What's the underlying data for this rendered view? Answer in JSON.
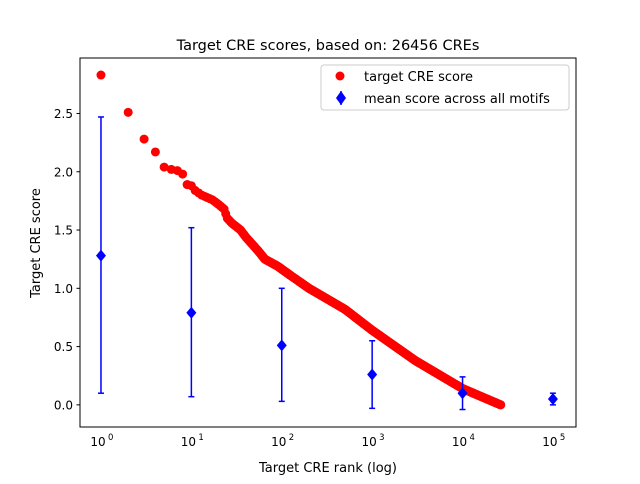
{
  "chart_data": {
    "type": "scatter",
    "title": "Target CRE scores, based on: 26456 CREs",
    "xlabel": "Target CRE rank (log)",
    "ylabel": "Target CRE score",
    "xscale": "log",
    "xlim": [
      0.586,
      180000
    ],
    "ylim": [
      -0.19,
      2.976
    ],
    "xticks": [
      {
        "value": 1,
        "base": "10",
        "exp": "0"
      },
      {
        "value": 10,
        "base": "10",
        "exp": "1"
      },
      {
        "value": 100,
        "base": "10",
        "exp": "2"
      },
      {
        "value": 1000,
        "base": "10",
        "exp": "3"
      },
      {
        "value": 10000,
        "base": "10",
        "exp": "4"
      },
      {
        "value": 100000,
        "base": "10",
        "exp": "5"
      }
    ],
    "yticks": [
      {
        "value": 0,
        "label": "0.0"
      },
      {
        "value": 0.5,
        "label": "0.5"
      },
      {
        "value": 1.0,
        "label": "1.0"
      },
      {
        "value": 1.5,
        "label": "1.5"
      },
      {
        "value": 2.0,
        "label": "2.0"
      },
      {
        "value": 2.5,
        "label": "2.5"
      }
    ],
    "legend": {
      "placement": "top-right",
      "entries": [
        "target CRE score",
        "mean score across all motifs"
      ]
    },
    "grid": false,
    "series": [
      {
        "name": "target CRE score",
        "kind": "scatter",
        "color": "#ff0000",
        "points": [
          [
            1,
            2.83
          ],
          [
            2,
            2.51
          ],
          [
            3,
            2.28
          ],
          [
            4,
            2.17
          ],
          [
            5,
            2.04
          ],
          [
            6,
            2.02
          ],
          [
            7,
            2.01
          ],
          [
            8,
            1.98
          ],
          [
            9,
            1.89
          ],
          [
            10,
            1.88
          ],
          [
            11,
            1.84
          ],
          [
            13,
            1.8
          ],
          [
            17,
            1.76
          ],
          [
            20,
            1.72
          ],
          [
            23,
            1.68
          ],
          [
            25,
            1.6
          ],
          [
            28,
            1.56
          ],
          [
            35,
            1.5
          ],
          [
            40,
            1.44
          ],
          [
            55,
            1.32
          ],
          [
            65,
            1.25
          ],
          [
            90,
            1.19
          ],
          [
            120,
            1.12
          ],
          [
            200,
            1.0
          ],
          [
            500,
            0.82
          ],
          [
            1000,
            0.64
          ],
          [
            3000,
            0.38
          ],
          [
            10000,
            0.14
          ],
          [
            20000,
            0.04
          ],
          [
            26456,
            0.0
          ]
        ],
        "dense_from_rank": 9
      },
      {
        "name": "mean score across all motifs",
        "kind": "errorbar",
        "color": "#0000ff",
        "points": [
          {
            "x": 1,
            "y": 1.28,
            "low": 0.1,
            "high": 2.47
          },
          {
            "x": 10,
            "y": 0.79,
            "low": 0.07,
            "high": 1.52
          },
          {
            "x": 100,
            "y": 0.51,
            "low": 0.03,
            "high": 1.0
          },
          {
            "x": 1000,
            "y": 0.26,
            "low": -0.03,
            "high": 0.55
          },
          {
            "x": 10000,
            "y": 0.1,
            "low": -0.04,
            "high": 0.24
          },
          {
            "x": 100000,
            "y": 0.05,
            "low": 0.0,
            "high": 0.1
          }
        ]
      }
    ]
  }
}
